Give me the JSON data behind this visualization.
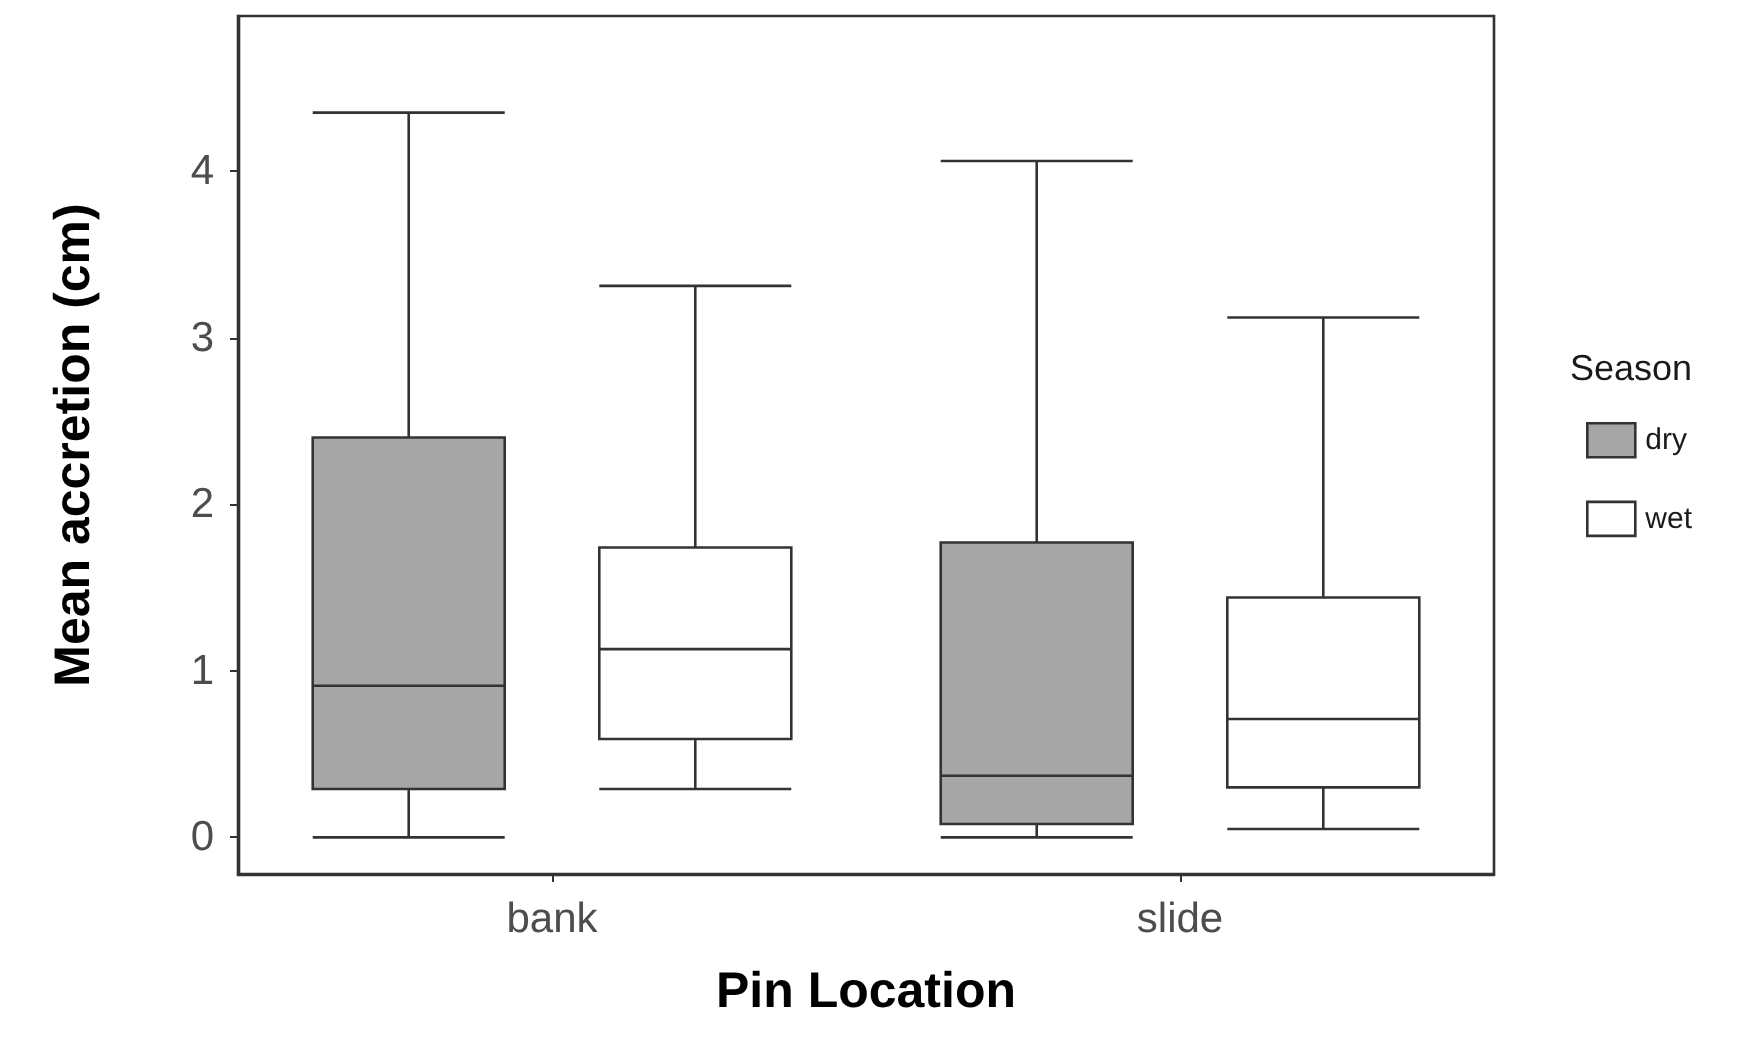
{
  "chart_data": {
    "type": "box",
    "xlabel": "Pin Location",
    "ylabel": "Mean accretion (cm)",
    "legend_title": "Season",
    "categories": [
      "bank",
      "slide"
    ],
    "series": [
      {
        "name": "dry",
        "color": "#a6a6a6",
        "boxes": [
          {
            "low": 0,
            "q1": 0.29,
            "median": 0.91,
            "q3": 2.4,
            "high": 4.35
          },
          {
            "low": 0,
            "q1": 0.08,
            "median": 0.37,
            "q3": 1.77,
            "high": 4.06
          }
        ]
      },
      {
        "name": "wet",
        "color": "#ffffff",
        "boxes": [
          {
            "low": 0.29,
            "q1": 0.59,
            "median": 1.13,
            "q3": 1.74,
            "high": 3.31
          },
          {
            "low": 0.05,
            "q1": 0.3,
            "median": 0.71,
            "q3": 1.44,
            "high": 3.12
          }
        ]
      }
    ],
    "ylim": [
      -0.22,
      4.93
    ],
    "yticks": [
      0,
      1,
      2,
      3,
      4
    ],
    "grid": false,
    "legend": "right"
  }
}
